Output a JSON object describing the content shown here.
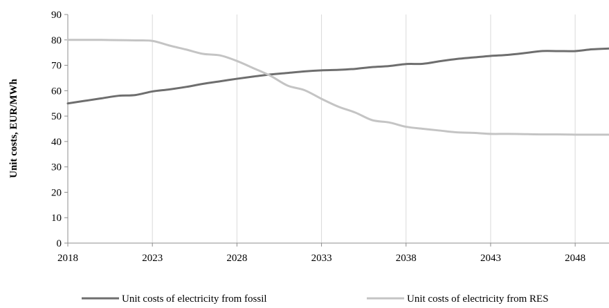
{
  "chart_data": {
    "type": "line",
    "title": "",
    "xlabel": "",
    "ylabel": "Unit costs, EUR/MWh",
    "xlim": [
      2018,
      2050
    ],
    "ylim": [
      0,
      90
    ],
    "x_ticks": [
      2018,
      2023,
      2028,
      2033,
      2038,
      2043,
      2048
    ],
    "y_ticks": [
      0,
      10,
      20,
      30,
      40,
      50,
      60,
      70,
      80,
      90
    ],
    "grid": "vertical",
    "legend_position": "bottom",
    "x": [
      2018,
      2019,
      2020,
      2021,
      2022,
      2023,
      2024,
      2025,
      2026,
      2027,
      2028,
      2029,
      2030,
      2031,
      2032,
      2033,
      2034,
      2035,
      2036,
      2037,
      2038,
      2039,
      2040,
      2041,
      2042,
      2043,
      2044,
      2045,
      2046,
      2047,
      2048,
      2049,
      2050
    ],
    "series": [
      {
        "name": "Unit costs of electricity from fossil",
        "color": "#6e6e6e",
        "values": [
          55,
          56,
          57,
          58,
          58.3,
          59.7,
          60.5,
          61.5,
          62.7,
          63.7,
          64.7,
          65.6,
          66.4,
          67.0,
          67.6,
          68.0,
          68.2,
          68.6,
          69.3,
          69.7,
          70.5,
          70.6,
          71.6,
          72.5,
          73.1,
          73.7,
          74.1,
          74.8,
          75.6,
          75.6,
          75.6,
          76.3,
          76.6
        ]
      },
      {
        "name": "Unit costs of electricity from RES",
        "color": "#c4c4c4",
        "values": [
          80,
          80,
          80,
          79.9,
          79.8,
          79.6,
          77.8,
          76.2,
          74.5,
          73.9,
          71.7,
          68.8,
          65.8,
          62.0,
          60.2,
          56.8,
          53.7,
          51.4,
          48.4,
          47.5,
          45.8,
          45.0,
          44.3,
          43.6,
          43.4,
          43.0,
          43.0,
          42.9,
          42.8,
          42.8,
          42.7,
          42.7,
          42.7
        ]
      }
    ]
  }
}
